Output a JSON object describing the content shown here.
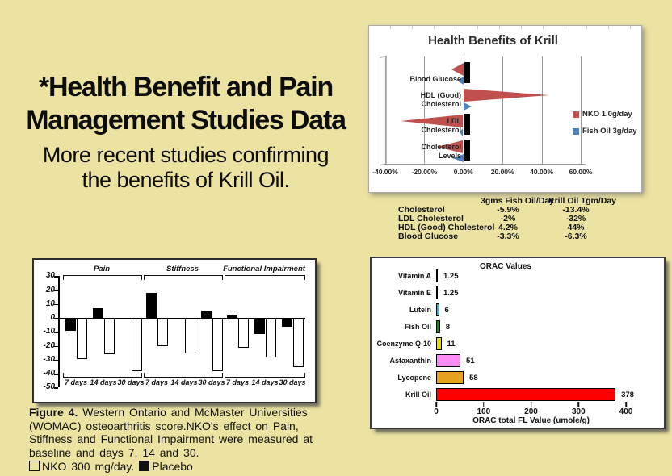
{
  "page": {
    "background": "#ece3a2"
  },
  "headline": {
    "title": [
      "*Health Benefit and Pain",
      "Management Studies Data"
    ],
    "subtitle": [
      "More recent studies confirming",
      "the benefits of Krill Oil."
    ]
  },
  "comparison_table": {
    "col_headers": [
      "3gms Fish Oil/Day",
      "Krill Oil 1gm/Day"
    ],
    "rows": [
      {
        "label": "Cholesterol",
        "fish": "-5.9%",
        "krill": "-13.4%"
      },
      {
        "label": "LDL Cholesterol",
        "fish": "-2%",
        "krill": "-32%"
      },
      {
        "label": "HDL (Good) Cholesterol",
        "fish": "4.2%",
        "krill": "44%"
      },
      {
        "label": "Blood Glucose",
        "fish": "-3.3%",
        "krill": "-6.3%"
      }
    ]
  },
  "womac_caption": {
    "figure_label": "Figure 4.",
    "lines": [
      "Western Ontario and McMaster Universities",
      "(WOMAC) osteoarthritis score.NKO's effect on Pain,",
      "Stiffness and Functional Impairment were measured at",
      "baseline and days 7, 14 and 30."
    ],
    "legend_nko": "NKO 300 mg/day.",
    "legend_placebo": "Placebo"
  },
  "chart_data": [
    {
      "id": "health-benefits-of-krill",
      "type": "bar",
      "orientation": "horizontal",
      "title": "Health Benefits of Krill",
      "categories": [
        "Blood Glucose",
        "HDL (Good) Cholesterol",
        "LDL Cholesterol",
        "Cholesterol Levels"
      ],
      "category_lines": [
        [
          "Blood Glucose"
        ],
        [
          "HDL (Good)",
          "Cholesterol"
        ],
        [
          "LDL",
          "Cholesterol"
        ],
        [
          "Cholesterol",
          "Levels"
        ]
      ],
      "series": [
        {
          "name": "NKO 1.0g/day",
          "color": "#c0504d",
          "values": [
            -6.3,
            44,
            -32,
            -13.4
          ]
        },
        {
          "name": "Fish Oil 3g/day",
          "color": "#4f81bd",
          "values": [
            -3.3,
            4.2,
            -2,
            -5.9
          ]
        }
      ],
      "x_ticks": [
        "-40.00%",
        "-20.00%",
        "0.00%",
        "20.00%",
        "40.00%",
        "60.00%"
      ],
      "xlim": [
        -40,
        60
      ],
      "legend_position": "right",
      "grid": true
    },
    {
      "id": "womac-osteoarthritis-scores",
      "type": "bar",
      "orientation": "vertical",
      "title": "",
      "ylim": [
        -50,
        30
      ],
      "y_ticks": [
        30,
        20,
        10,
        0,
        -10,
        -20,
        -30,
        -40,
        -50
      ],
      "series_legend": [
        {
          "name": "Placebo",
          "fill": "black"
        },
        {
          "name": "NKO 300 mg/day",
          "fill": "white"
        }
      ],
      "sections": [
        {
          "label": "Pain",
          "groups": [
            {
              "day": "7 days",
              "placebo": -9,
              "nko": -29
            },
            {
              "day": "14 days",
              "placebo": 7,
              "nko": -26
            },
            {
              "day": "30 days",
              "placebo": 0,
              "nko": -38
            }
          ]
        },
        {
          "label": "Stiffness",
          "groups": [
            {
              "day": "7 days",
              "placebo": 18,
              "nko": -20
            },
            {
              "day": "14 days",
              "placebo": 0,
              "nko": -25
            },
            {
              "day": "30 days",
              "placebo": 5.5,
              "nko": -38
            }
          ]
        },
        {
          "label": "Functional Impairment",
          "groups": [
            {
              "day": "7 days",
              "placebo": 2,
              "nko": -21
            },
            {
              "day": "14 days",
              "placebo": -11,
              "nko": -28
            },
            {
              "day": "30 days",
              "placebo": -6,
              "nko": -35
            }
          ]
        }
      ]
    },
    {
      "id": "orac-values",
      "type": "bar",
      "orientation": "horizontal",
      "title": "ORAC Values",
      "xlabel": "ORAC total FL Value (umole/g)",
      "x_ticks": [
        0,
        100,
        200,
        300,
        400
      ],
      "xlim": [
        0,
        400
      ],
      "bars": [
        {
          "label": "Vitamin A",
          "value": 1.25,
          "display": "1.25",
          "color": "#191952"
        },
        {
          "label": "Vitamin E",
          "value": 1.25,
          "display": "1.25",
          "color": "#4b0f2d"
        },
        {
          "label": "Lutein",
          "value": 6,
          "display": "6",
          "color": "#0bc6d6"
        },
        {
          "label": "Fish Oil",
          "value": 8,
          "display": "8",
          "color": "#0f9117"
        },
        {
          "label": "Coenzyme Q-10",
          "value": 11,
          "display": "11",
          "color": "#e3de00"
        },
        {
          "label": "Astaxanthin",
          "value": 51,
          "display": "51",
          "color": "#fb8df5"
        },
        {
          "label": "Lycopene",
          "value": 58,
          "display": "58",
          "color": "#e5a01c"
        },
        {
          "label": "Krill Oil",
          "value": 378,
          "display": "378",
          "color": "#fe0000"
        }
      ]
    }
  ]
}
